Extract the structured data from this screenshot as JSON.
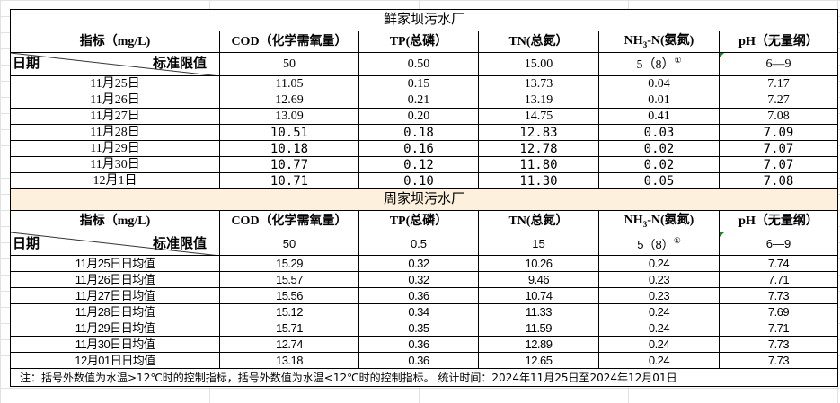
{
  "sections": [
    {
      "title": "鲜家坝污水厂",
      "header": {
        "indicator": "指标（mg/L)",
        "cod": "COD（化学需氧量）",
        "tp": "TP(总磷）",
        "tn": "TN(总氮）",
        "nh3_pre": "NH",
        "nh3_sub": "3",
        "nh3_post": "-N(氨氮)",
        "ph": "pH（无量纲）"
      },
      "standard": {
        "date_label": "日期",
        "limit_label": "标准限值",
        "cod": "50",
        "tp": "0.50",
        "tn": "15.00",
        "nh3": "5（8）",
        "nh3_note": "①",
        "ph": "6—9"
      },
      "rows": [
        {
          "date": "11月25日",
          "cod": "11.05",
          "tp": "0.15",
          "tn": "13.73",
          "nh3": "0.04",
          "ph": "7.17"
        },
        {
          "date": "11月26日",
          "cod": "12.69",
          "tp": "0.21",
          "tn": "13.19",
          "nh3": "0.01",
          "ph": "7.27"
        },
        {
          "date": "11月27日",
          "cod": "13.09",
          "tp": "0.20",
          "tn": "14.75",
          "nh3": "0.41",
          "ph": "7.08"
        },
        {
          "date": "11月28日",
          "cod": "10.51",
          "tp": "0.18",
          "tn": "12.83",
          "nh3": "0.03",
          "ph": "7.09"
        },
        {
          "date": "11月29日",
          "cod": "10.18",
          "tp": "0.16",
          "tn": "12.78",
          "nh3": "0.02",
          "ph": "7.07"
        },
        {
          "date": "11月30日",
          "cod": "10.77",
          "tp": "0.12",
          "tn": "11.80",
          "nh3": "0.02",
          "ph": "7.07"
        },
        {
          "date": "12月1日",
          "cod": "10.71",
          "tp": "0.10",
          "tn": "11.30",
          "nh3": "0.05",
          "ph": "7.08"
        }
      ]
    },
    {
      "title": "周家坝污水厂",
      "header": {
        "indicator": "指标（mg/L)",
        "cod": "COD（化学需氧量）",
        "tp": "TP(总磷）",
        "tn": "TN(总氮）",
        "nh3_pre": "NH",
        "nh3_sub": "3",
        "nh3_post": "-N(氨氮)",
        "ph": "pH（无量纲）"
      },
      "standard": {
        "date_label": "日期",
        "limit_label": "标准限值",
        "cod": "50",
        "tp": "0.5",
        "tn": "15",
        "nh3": "5（8）",
        "nh3_note": "①",
        "ph": "6—9"
      },
      "rows": [
        {
          "date": "11月25日日均值",
          "cod": "15.29",
          "tp": "0.32",
          "tn": "10.26",
          "nh3": "0.24",
          "ph": "7.74"
        },
        {
          "date": "11月26日日均值",
          "cod": "15.57",
          "tp": "0.32",
          "tn": "9.46",
          "nh3": "0.23",
          "ph": "7.71"
        },
        {
          "date": "11月27日日均值",
          "cod": "15.56",
          "tp": "0.36",
          "tn": "10.74",
          "nh3": "0.23",
          "ph": "7.73"
        },
        {
          "date": "11月28日日均值",
          "cod": "15.12",
          "tp": "0.34",
          "tn": "11.33",
          "nh3": "0.24",
          "ph": "7.69"
        },
        {
          "date": "11月29日日均值",
          "cod": "15.71",
          "tp": "0.35",
          "tn": "11.59",
          "nh3": "0.24",
          "ph": "7.71"
        },
        {
          "date": "11月30日日均值",
          "cod": "12.74",
          "tp": "0.36",
          "tn": "12.89",
          "nh3": "0.24",
          "ph": "7.73"
        },
        {
          "date": "12月01日日均值",
          "cod": "13.18",
          "tp": "0.36",
          "tn": "12.65",
          "nh3": "0.24",
          "ph": "7.73"
        }
      ]
    }
  ],
  "note": "注：括号外数值为水温>12℃时的控制指标，括号外数值为水温<12℃时的控制指标。  统计时间：2024年11月25日至2024年12月01日",
  "colors": {
    "title_bg": "#fdf0dc",
    "border": "#000000",
    "gridline": "#e2e2e2",
    "comment_marker": "#1a8a1a"
  }
}
